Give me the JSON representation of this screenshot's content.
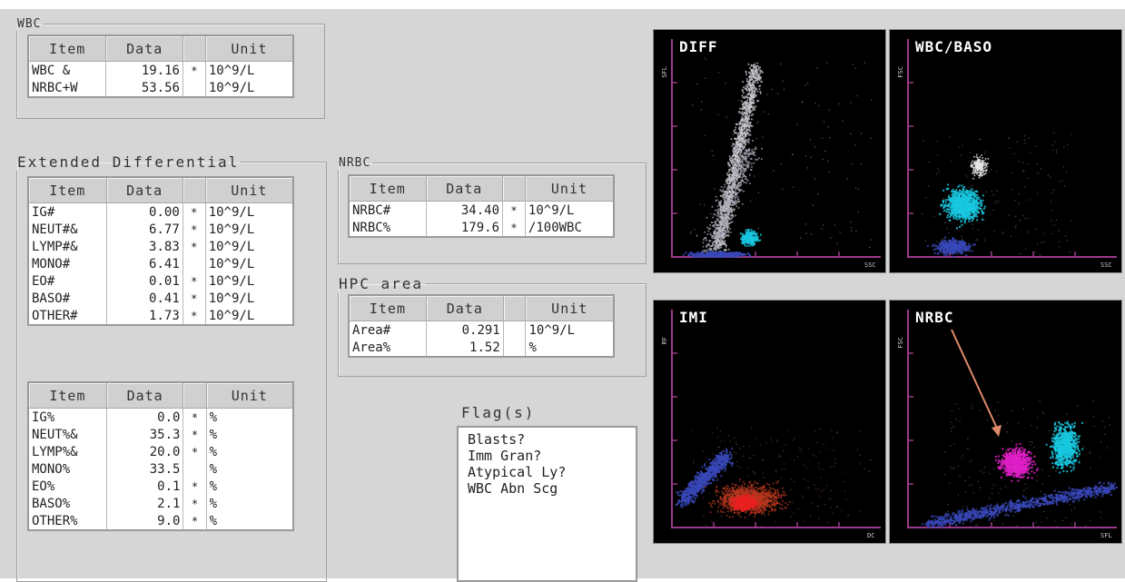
{
  "wbc": {
    "legend": "WBC",
    "headers": [
      "Item",
      "Data",
      "",
      "Unit"
    ],
    "rows": [
      {
        "item": "WBC  &",
        "data": "19.16",
        "flag": "*",
        "unit": "10^9/L"
      },
      {
        "item": "NRBC+W",
        "data": "53.56",
        "flag": "",
        "unit": "10^9/L"
      }
    ]
  },
  "ext": {
    "legend": "Extended Differential",
    "headers": [
      "Item",
      "Data",
      "",
      "Unit"
    ],
    "abs_rows": [
      {
        "item": "IG#",
        "data": "0.00",
        "flag": "*",
        "unit": "10^9/L"
      },
      {
        "item": "NEUT#&",
        "data": "6.77",
        "flag": "*",
        "unit": "10^9/L"
      },
      {
        "item": "LYMP#&",
        "data": "3.83",
        "flag": "*",
        "unit": "10^9/L"
      },
      {
        "item": "MONO#",
        "data": "6.41",
        "flag": "",
        "unit": "10^9/L"
      },
      {
        "item": "EO#",
        "data": "0.01",
        "flag": "*",
        "unit": "10^9/L"
      },
      {
        "item": "BASO#",
        "data": "0.41",
        "flag": "*",
        "unit": "10^9/L"
      },
      {
        "item": "OTHER#",
        "data": "1.73",
        "flag": "*",
        "unit": "10^9/L"
      }
    ],
    "pct_rows": [
      {
        "item": "IG%",
        "data": "0.0",
        "flag": "*",
        "unit": "%"
      },
      {
        "item": "NEUT%&",
        "data": "35.3",
        "flag": "*",
        "unit": "%"
      },
      {
        "item": "LYMP%&",
        "data": "20.0",
        "flag": "*",
        "unit": "%"
      },
      {
        "item": "MONO%",
        "data": "33.5",
        "flag": "",
        "unit": "%"
      },
      {
        "item": "EO%",
        "data": "0.1",
        "flag": "*",
        "unit": "%"
      },
      {
        "item": "BASO%",
        "data": "2.1",
        "flag": "*",
        "unit": "%"
      },
      {
        "item": "OTHER%",
        "data": "9.0",
        "flag": "*",
        "unit": "%"
      }
    ]
  },
  "nrbc": {
    "legend": "NRBC",
    "headers": [
      "Item",
      "Data",
      "",
      "Unit"
    ],
    "rows": [
      {
        "item": "NRBC#",
        "data": "34.40",
        "flag": "*",
        "unit": "10^9/L"
      },
      {
        "item": "NRBC%",
        "data": "179.6",
        "flag": "*",
        "unit": "/100WBC"
      }
    ]
  },
  "hpc": {
    "legend": "HPC area",
    "headers": [
      "Item",
      "Data",
      "",
      "Unit"
    ],
    "rows": [
      {
        "item": "Area#",
        "data": "0.291",
        "flag": "",
        "unit": "10^9/L"
      },
      {
        "item": "Area%",
        "data": "1.52",
        "flag": "",
        "unit": "%"
      }
    ]
  },
  "flags": {
    "label": "Flag(s)",
    "items": [
      "Blasts?",
      "Imm Gran?",
      "Atypical Ly?",
      "WBC Abn Scg"
    ]
  },
  "scattergrams": {
    "diff": {
      "title": "DIFF",
      "ylabel": "SFL",
      "xlabel": "SSC"
    },
    "wbc_baso": {
      "title": "WBC/BASO",
      "ylabel": "FSC",
      "xlabel": "SSC"
    },
    "imi": {
      "title": "IMI",
      "ylabel": "RF",
      "xlabel": "DC"
    },
    "nrbc": {
      "title": "NRBC",
      "ylabel": "FSC",
      "xlabel": "SFL"
    }
  },
  "colors": {
    "axis": "#9a3a8a",
    "grey_population": "#c8c8d0",
    "cyan_population": "#18c8e0",
    "blue_population": "#3848b8",
    "red_population": "#e82020",
    "magenta_population": "#e020c8",
    "arrow": "#e08a6a"
  }
}
